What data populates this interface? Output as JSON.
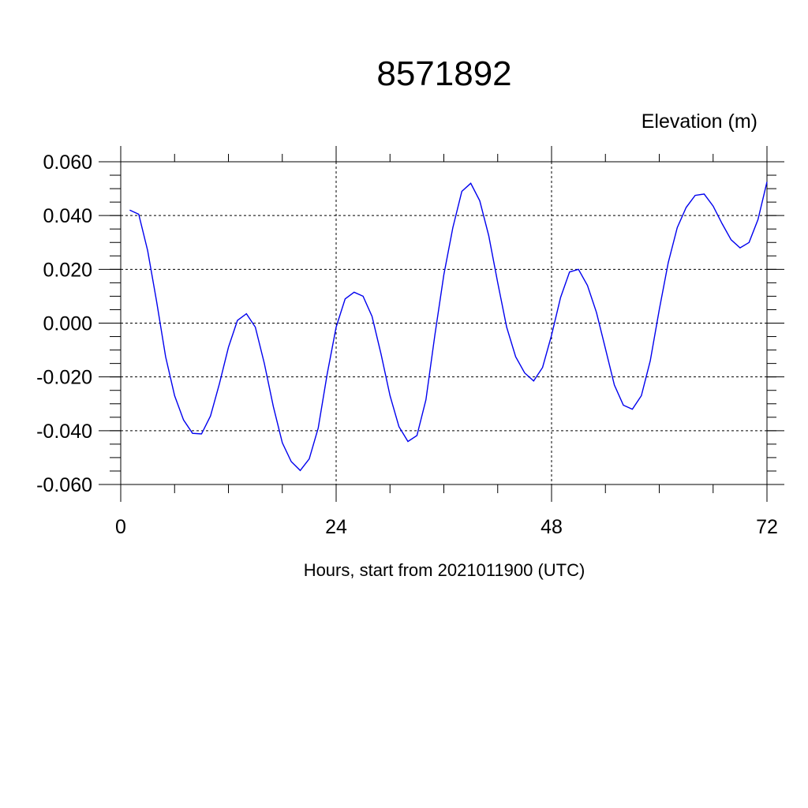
{
  "chart_data": {
    "type": "line",
    "title": "8571892",
    "units_label": "Elevation (m)",
    "xlabel": "Hours, start from 2021011900 (UTC)",
    "xlim": [
      0,
      72
    ],
    "ylim": [
      -0.06,
      0.06
    ],
    "x_ticks": [
      0,
      24,
      48,
      72
    ],
    "x_tick_labels": [
      "0",
      "24",
      "48",
      "72"
    ],
    "y_ticks": [
      -0.06,
      -0.04,
      -0.02,
      0.0,
      0.02,
      0.04,
      0.06
    ],
    "y_tick_labels": [
      "-0.060",
      "-0.040",
      "-0.020",
      "0.000",
      "0.020",
      "0.040",
      "0.060"
    ],
    "grid": true,
    "series_color": "#0000ee",
    "series": [
      {
        "x": [
          1,
          2,
          3,
          4,
          5,
          6,
          7,
          8,
          9,
          10,
          11,
          12,
          13,
          14,
          15,
          16,
          17,
          18,
          19,
          20,
          21,
          22,
          23,
          24,
          25,
          26,
          27,
          28,
          29,
          30,
          31,
          32,
          33,
          34,
          35,
          36,
          37,
          38,
          39,
          40,
          41,
          42,
          43,
          44,
          45,
          46,
          47,
          48,
          49,
          50,
          51,
          52,
          53,
          54,
          55,
          56,
          57,
          58,
          59,
          60,
          61,
          62,
          63,
          64,
          65,
          66,
          67,
          68,
          69,
          70,
          71,
          72
        ],
        "values": [
          0.042,
          0.0405,
          0.027,
          0.008,
          -0.0125,
          -0.027,
          -0.036,
          -0.041,
          -0.0412,
          -0.0345,
          -0.0225,
          -0.009,
          0.001,
          0.0035,
          -0.0015,
          -0.015,
          -0.031,
          -0.0445,
          -0.0515,
          -0.0548,
          -0.0505,
          -0.039,
          -0.019,
          -0.0015,
          0.009,
          0.0115,
          0.01,
          0.0025,
          -0.0115,
          -0.027,
          -0.0385,
          -0.044,
          -0.0418,
          -0.0285,
          -0.0045,
          0.018,
          0.0355,
          0.049,
          0.052,
          0.0455,
          0.0325,
          0.015,
          -0.0015,
          -0.0125,
          -0.0185,
          -0.0215,
          -0.0165,
          -0.0045,
          0.0095,
          0.019,
          0.02,
          0.014,
          0.004,
          -0.0095,
          -0.023,
          -0.0305,
          -0.032,
          -0.027,
          -0.014,
          0.005,
          0.0225,
          0.0355,
          0.043,
          0.0475,
          0.048,
          0.0435,
          0.037,
          0.031,
          0.028,
          0.03,
          0.0385,
          0.0525
        ]
      }
    ]
  }
}
